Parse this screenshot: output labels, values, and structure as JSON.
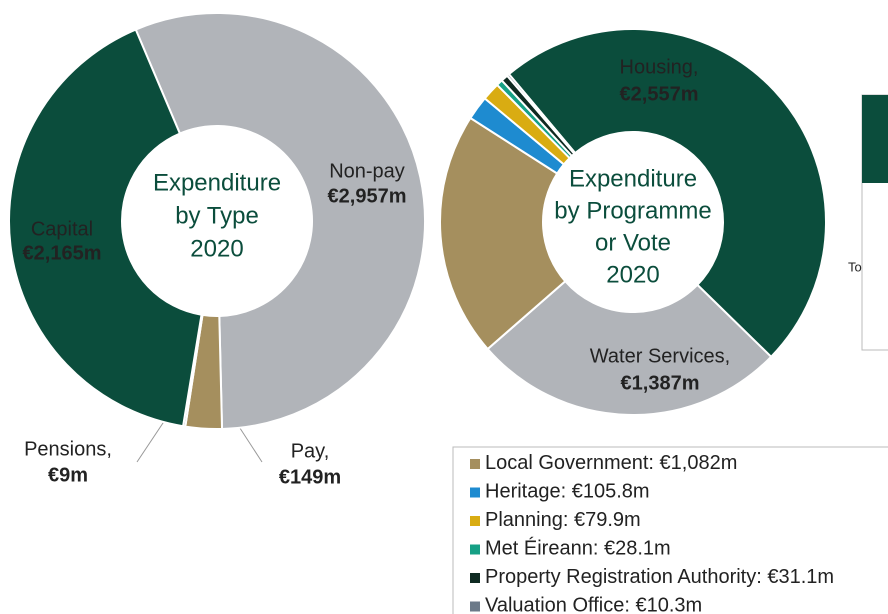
{
  "chart_data": [
    {
      "type": "donut",
      "title": [
        "Expenditure",
        "by Type",
        "2020"
      ],
      "categories": [
        "Non-pay",
        "Pay,",
        "Pensions,",
        "Capital"
      ],
      "values": [
        2957,
        149,
        9,
        2165
      ],
      "value_labels": [
        "€2,957m",
        "€149m",
        "€9m",
        "€2,165m"
      ],
      "colors": [
        "#b1b4b9",
        "#a58f5e",
        "#6c7a89",
        "#0b4d3c"
      ]
    },
    {
      "type": "donut",
      "title": [
        "Expenditure",
        "by Programme",
        "or Vote",
        "2020"
      ],
      "categories": [
        "Housing,",
        "Water Services,",
        "Local Government:",
        "Heritage:",
        "Planning:",
        "Met Éireann:",
        "Property Registration Authority:",
        "Valuation Office:"
      ],
      "values": [
        2557,
        1387,
        1082,
        105.8,
        79.9,
        28.1,
        31.1,
        10.3
      ],
      "value_labels": [
        "€2,557m",
        "€1,387m",
        "€1,082m",
        "€105.8m",
        "€79.9m",
        "€28.1m",
        "€31.1m",
        "€10.3m"
      ],
      "colors": [
        "#0b4d3c",
        "#b1b4b9",
        "#a58f5e",
        "#1e8bd0",
        "#d9ac12",
        "#16a085",
        "#0f2a22",
        "#6c7a89"
      ]
    }
  ],
  "panel": {
    "text": "To"
  }
}
